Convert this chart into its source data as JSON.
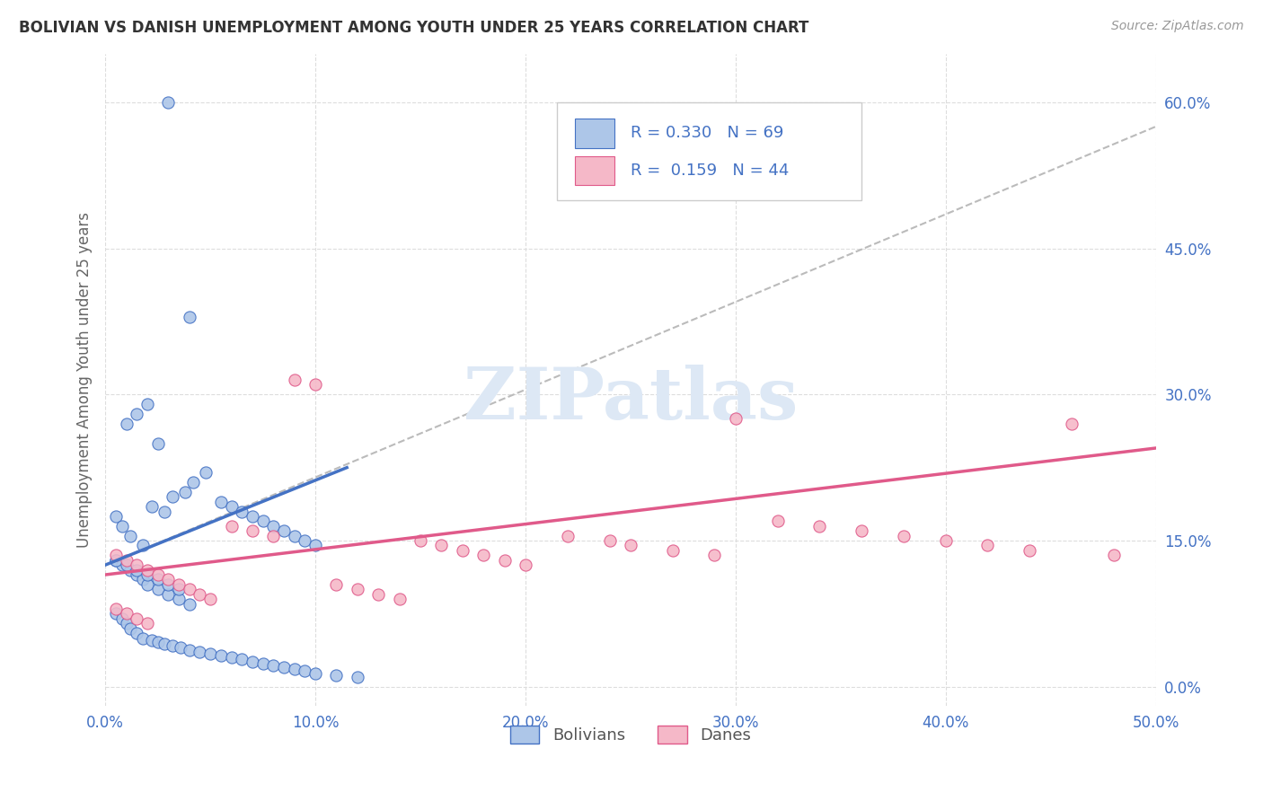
{
  "title": "BOLIVIAN VS DANISH UNEMPLOYMENT AMONG YOUTH UNDER 25 YEARS CORRELATION CHART",
  "source": "Source: ZipAtlas.com",
  "ylabel": "Unemployment Among Youth under 25 years",
  "xlim": [
    0.0,
    0.5
  ],
  "ylim": [
    -0.02,
    0.65
  ],
  "x_ticks": [
    0.0,
    0.1,
    0.2,
    0.3,
    0.4,
    0.5
  ],
  "x_tick_labels": [
    "0.0%",
    "10.0%",
    "20.0%",
    "30.0%",
    "40.0%",
    "50.0%"
  ],
  "y_ticks": [
    0.0,
    0.15,
    0.3,
    0.45,
    0.6
  ],
  "y_tick_labels": [
    "0.0%",
    "15.0%",
    "30.0%",
    "45.0%",
    "60.0%"
  ],
  "R_bolivian": 0.33,
  "N_bolivian": 69,
  "R_danish": 0.159,
  "N_danish": 44,
  "color_bolivian_fill": "#adc6e8",
  "color_bolivian_edge": "#4472c4",
  "color_danish_fill": "#f5b8c8",
  "color_danish_edge": "#e05a8a",
  "color_blue_line": "#4472c4",
  "color_pink_line": "#e05a8a",
  "color_dash_line": "#bbbbbb",
  "color_text_blue": "#4472c4",
  "color_title": "#333333",
  "color_source": "#999999",
  "color_ylabel": "#666666",
  "color_tick": "#4472c4",
  "color_grid": "#dddddd",
  "watermark_text": "ZIPatlas",
  "watermark_color": "#dde8f5",
  "bolivian_x": [
    0.03,
    0.04,
    0.02,
    0.025,
    0.015,
    0.01,
    0.005,
    0.008,
    0.012,
    0.018,
    0.022,
    0.028,
    0.032,
    0.038,
    0.042,
    0.048,
    0.055,
    0.06,
    0.065,
    0.07,
    0.075,
    0.08,
    0.085,
    0.09,
    0.095,
    0.1,
    0.005,
    0.008,
    0.012,
    0.015,
    0.018,
    0.02,
    0.025,
    0.03,
    0.035,
    0.04,
    0.005,
    0.008,
    0.01,
    0.012,
    0.015,
    0.018,
    0.022,
    0.025,
    0.028,
    0.032,
    0.036,
    0.04,
    0.045,
    0.05,
    0.055,
    0.06,
    0.065,
    0.07,
    0.075,
    0.08,
    0.085,
    0.09,
    0.095,
    0.1,
    0.11,
    0.12,
    0.005,
    0.01,
    0.015,
    0.02,
    0.025,
    0.03,
    0.035
  ],
  "bolivian_y": [
    0.6,
    0.38,
    0.29,
    0.25,
    0.28,
    0.27,
    0.175,
    0.165,
    0.155,
    0.145,
    0.185,
    0.18,
    0.195,
    0.2,
    0.21,
    0.22,
    0.19,
    0.185,
    0.18,
    0.175,
    0.17,
    0.165,
    0.16,
    0.155,
    0.15,
    0.145,
    0.13,
    0.125,
    0.12,
    0.115,
    0.11,
    0.105,
    0.1,
    0.095,
    0.09,
    0.085,
    0.075,
    0.07,
    0.065,
    0.06,
    0.055,
    0.05,
    0.048,
    0.046,
    0.044,
    0.042,
    0.04,
    0.038,
    0.036,
    0.034,
    0.032,
    0.03,
    0.028,
    0.026,
    0.024,
    0.022,
    0.02,
    0.018,
    0.016,
    0.014,
    0.012,
    0.01,
    0.13,
    0.125,
    0.12,
    0.115,
    0.11,
    0.105,
    0.1
  ],
  "danish_x": [
    0.005,
    0.01,
    0.015,
    0.02,
    0.025,
    0.03,
    0.035,
    0.04,
    0.045,
    0.05,
    0.06,
    0.07,
    0.08,
    0.09,
    0.1,
    0.11,
    0.12,
    0.13,
    0.14,
    0.15,
    0.16,
    0.17,
    0.18,
    0.19,
    0.2,
    0.22,
    0.24,
    0.25,
    0.27,
    0.29,
    0.3,
    0.32,
    0.34,
    0.36,
    0.38,
    0.4,
    0.42,
    0.44,
    0.46,
    0.48,
    0.005,
    0.01,
    0.015,
    0.02
  ],
  "danish_y": [
    0.135,
    0.13,
    0.125,
    0.12,
    0.115,
    0.11,
    0.105,
    0.1,
    0.095,
    0.09,
    0.165,
    0.16,
    0.155,
    0.315,
    0.31,
    0.105,
    0.1,
    0.095,
    0.09,
    0.15,
    0.145,
    0.14,
    0.135,
    0.13,
    0.125,
    0.155,
    0.15,
    0.145,
    0.14,
    0.135,
    0.275,
    0.17,
    0.165,
    0.16,
    0.155,
    0.15,
    0.145,
    0.14,
    0.27,
    0.135,
    0.08,
    0.075,
    0.07,
    0.065
  ],
  "bol_line_x0": 0.0,
  "bol_line_x1": 0.115,
  "bol_line_y0": 0.125,
  "bol_line_y1": 0.225,
  "dash_line_x0": 0.0,
  "dash_line_x1": 0.5,
  "dash_line_y0": 0.125,
  "dash_line_y1": 0.575,
  "dan_line_x0": 0.0,
  "dan_line_x1": 0.5,
  "dan_line_y0": 0.115,
  "dan_line_y1": 0.245
}
